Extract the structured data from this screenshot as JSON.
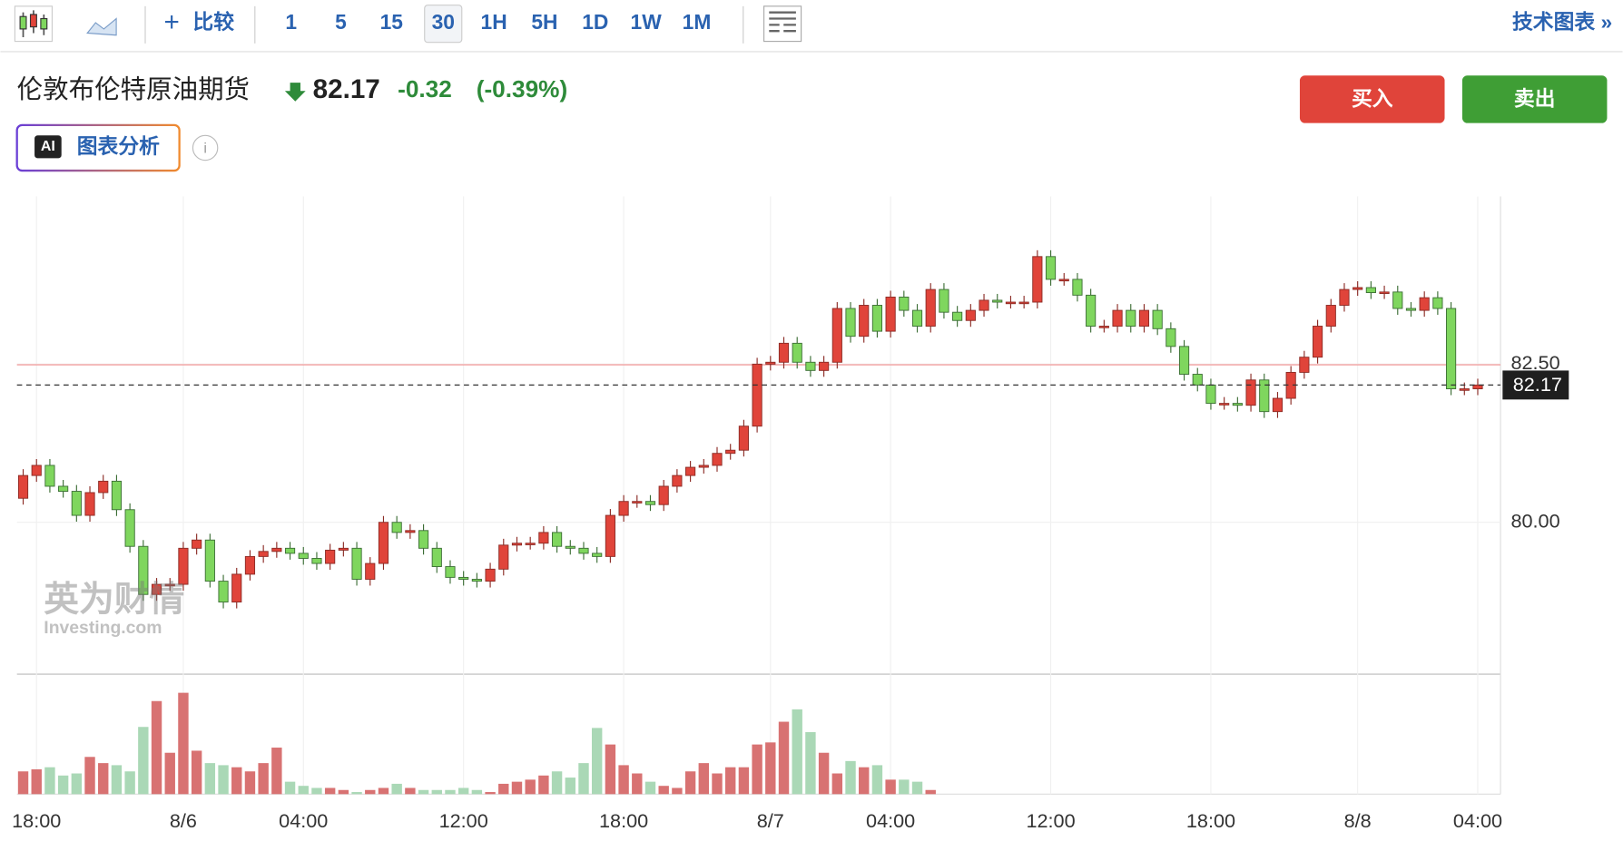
{
  "toolbar": {
    "compare": "比较",
    "intervals": [
      "1",
      "5",
      "15",
      "30",
      "1H",
      "5H",
      "1D",
      "1W",
      "1M"
    ],
    "tech_chart": "技术图表 »"
  },
  "header": {
    "instrument": "伦敦布伦特原油期货",
    "price": "82.17",
    "change": "-0.32",
    "change_pct": "(-0.39%)",
    "buy": "买入",
    "sell": "卖出",
    "ai_badge": "AI",
    "ai_button": "图表分析"
  },
  "watermark": {
    "cn": "英为财情",
    "en": "Investing.com"
  },
  "chart_data": {
    "type": "candlestick",
    "categories": [
      null,
      "18:00",
      null,
      null,
      null,
      null,
      null,
      null,
      null,
      null,
      null,
      null,
      "8/6",
      null,
      null,
      null,
      null,
      null,
      null,
      null,
      null,
      "04:00",
      null,
      null,
      null,
      null,
      null,
      null,
      null,
      null,
      null,
      null,
      null,
      "12:00",
      null,
      null,
      null,
      null,
      null,
      null,
      null,
      null,
      null,
      null,
      null,
      "18:00",
      null,
      null,
      null,
      null,
      null,
      null,
      null,
      null,
      null,
      null,
      "8/7",
      null,
      null,
      null,
      null,
      null,
      null,
      null,
      null,
      "04:00",
      null,
      null,
      null,
      null,
      null,
      null,
      null,
      null,
      null,
      null,
      null,
      "12:00",
      null,
      null,
      null,
      null,
      null,
      null,
      null,
      null,
      null,
      null,
      null,
      "18:00",
      null,
      null,
      null,
      null,
      null,
      null,
      null,
      null,
      null,
      null,
      "8/8",
      null,
      null,
      null,
      null,
      null,
      null,
      null,
      null,
      "04:00"
    ],
    "open": [
      80.38,
      80.74,
      80.9,
      80.57,
      80.49,
      80.11,
      80.47,
      80.65,
      80.2,
      79.62,
      78.86,
      79.02,
      79.02,
      79.59,
      79.72,
      79.07,
      78.74,
      79.18,
      79.46,
      79.54,
      79.59,
      79.51,
      79.43,
      79.35,
      79.56,
      79.59,
      79.1,
      79.35,
      80.0,
      79.84,
      79.87,
      79.59,
      79.3,
      79.13,
      79.1,
      79.07,
      79.26,
      79.64,
      79.67,
      79.67,
      79.84,
      79.62,
      79.59,
      79.51,
      79.46,
      80.11,
      80.33,
      80.33,
      80.28,
      80.57,
      80.74,
      80.87,
      80.9,
      81.09,
      81.14,
      81.52,
      82.5,
      82.53,
      82.83,
      82.53,
      82.4,
      82.53,
      83.38,
      82.94,
      83.43,
      83.02,
      83.56,
      83.35,
      83.1,
      83.68,
      83.32,
      83.19,
      83.35,
      83.51,
      83.48,
      83.48,
      83.48,
      84.2,
      83.84,
      83.84,
      83.59,
      83.1,
      83.1,
      83.35,
      83.1,
      83.35,
      83.06,
      82.78,
      82.34,
      82.17,
      81.88,
      81.88,
      81.85,
      82.25,
      81.75,
      81.96,
      82.37,
      82.61,
      83.1,
      83.43,
      83.68,
      83.71,
      83.63,
      83.64,
      83.38,
      83.35,
      83.55,
      83.38,
      82.11,
      82.11
    ],
    "high": [
      80.84,
      81.0,
      81.0,
      80.67,
      80.59,
      80.57,
      80.75,
      80.75,
      80.3,
      79.72,
      79.12,
      79.12,
      79.69,
      79.82,
      79.82,
      79.17,
      79.28,
      79.56,
      79.64,
      79.69,
      79.69,
      79.61,
      79.53,
      79.66,
      79.69,
      79.69,
      79.45,
      80.1,
      80.1,
      79.97,
      79.97,
      79.69,
      79.4,
      79.23,
      79.2,
      79.36,
      79.74,
      79.77,
      79.77,
      79.94,
      79.94,
      79.72,
      79.69,
      79.61,
      80.21,
      80.43,
      80.43,
      80.43,
      80.67,
      80.84,
      80.97,
      81.0,
      81.19,
      81.24,
      81.62,
      82.6,
      82.63,
      82.93,
      82.93,
      82.63,
      82.63,
      83.48,
      83.48,
      83.53,
      83.53,
      83.66,
      83.66,
      83.45,
      83.78,
      83.78,
      83.42,
      83.45,
      83.61,
      83.61,
      83.58,
      83.58,
      84.3,
      84.3,
      83.94,
      83.94,
      83.69,
      83.2,
      83.45,
      83.45,
      83.45,
      83.45,
      83.16,
      82.88,
      82.44,
      82.27,
      81.98,
      81.98,
      82.35,
      82.35,
      82.06,
      82.47,
      82.71,
      83.2,
      83.53,
      83.78,
      83.81,
      83.81,
      83.74,
      83.74,
      83.48,
      83.65,
      83.65,
      83.48,
      82.21,
      82.27
    ],
    "low": [
      80.28,
      80.64,
      80.47,
      80.39,
      80.01,
      80.01,
      80.37,
      80.1,
      79.52,
      78.76,
      78.76,
      78.92,
      78.92,
      79.49,
      78.97,
      78.64,
      78.64,
      79.08,
      79.36,
      79.44,
      79.41,
      79.33,
      79.25,
      79.25,
      79.46,
      79.0,
      79.0,
      79.25,
      79.74,
      79.74,
      79.49,
      79.2,
      79.03,
      79.0,
      78.97,
      78.97,
      79.16,
      79.54,
      79.57,
      79.57,
      79.52,
      79.49,
      79.41,
      79.36,
      79.36,
      80.01,
      80.23,
      80.18,
      80.18,
      80.47,
      80.64,
      80.77,
      80.8,
      80.99,
      81.04,
      81.42,
      82.4,
      82.43,
      82.43,
      82.3,
      82.3,
      82.43,
      82.84,
      82.84,
      82.92,
      82.92,
      83.25,
      83.0,
      83.0,
      83.22,
      83.09,
      83.09,
      83.25,
      83.38,
      83.38,
      83.38,
      83.38,
      83.74,
      83.74,
      83.49,
      83.0,
      83.0,
      83.0,
      83.0,
      83.0,
      82.96,
      82.68,
      82.24,
      82.07,
      81.78,
      81.78,
      81.75,
      81.75,
      81.65,
      81.65,
      81.86,
      82.27,
      82.51,
      83.0,
      83.33,
      83.58,
      83.53,
      83.53,
      83.28,
      83.25,
      83.25,
      83.28,
      82.01,
      82.01,
      82.01
    ],
    "close": [
      80.74,
      80.9,
      80.57,
      80.49,
      80.11,
      80.47,
      80.65,
      80.2,
      79.62,
      78.86,
      79.02,
      79.02,
      79.59,
      79.72,
      79.07,
      78.74,
      79.18,
      79.46,
      79.54,
      79.59,
      79.51,
      79.43,
      79.35,
      79.56,
      79.59,
      79.1,
      79.35,
      80.0,
      79.84,
      79.87,
      79.59,
      79.3,
      79.13,
      79.1,
      79.07,
      79.26,
      79.64,
      79.67,
      79.67,
      79.84,
      79.62,
      79.59,
      79.51,
      79.46,
      80.11,
      80.33,
      80.33,
      80.28,
      80.57,
      80.74,
      80.87,
      80.9,
      81.09,
      81.14,
      81.52,
      82.5,
      82.53,
      82.83,
      82.53,
      82.4,
      82.53,
      83.38,
      82.94,
      83.43,
      83.02,
      83.56,
      83.35,
      83.1,
      83.68,
      83.32,
      83.19,
      83.35,
      83.51,
      83.48,
      83.48,
      83.48,
      84.2,
      83.84,
      83.84,
      83.59,
      83.1,
      83.1,
      83.35,
      83.1,
      83.35,
      83.06,
      82.78,
      82.34,
      82.17,
      81.88,
      81.88,
      81.85,
      82.25,
      81.75,
      81.96,
      82.37,
      82.61,
      83.1,
      83.43,
      83.68,
      83.71,
      83.63,
      83.64,
      83.38,
      83.35,
      83.55,
      83.38,
      82.11,
      82.11,
      82.17
    ],
    "volume": [
      22,
      24,
      26,
      18,
      20,
      36,
      30,
      28,
      22,
      65,
      90,
      40,
      98,
      42,
      30,
      28,
      26,
      22,
      30,
      45,
      12,
      8,
      6,
      6,
      4,
      2,
      4,
      6,
      10,
      6,
      4,
      4,
      4,
      6,
      4,
      2,
      10,
      12,
      14,
      18,
      22,
      16,
      30,
      64,
      48,
      28,
      20,
      12,
      8,
      6,
      22,
      30,
      20,
      26,
      26,
      48,
      50,
      70,
      82,
      60,
      40,
      20,
      32,
      26,
      28,
      14,
      14,
      12,
      4,
      null,
      null,
      null,
      null,
      null,
      null,
      null,
      null,
      null,
      null,
      null,
      null,
      null,
      null,
      null,
      null,
      null,
      null,
      null,
      null,
      null,
      null,
      null,
      null,
      null,
      null,
      null,
      null,
      null,
      null,
      null,
      null,
      null,
      null,
      null,
      null,
      null,
      null,
      null,
      null,
      null
    ],
    "volume_lim": [
      0,
      116
    ],
    "prev_close": 82.49,
    "ylim": [
      77.6,
      85.15
    ],
    "yticks": [
      {
        "value": 80,
        "label": "80.00"
      },
      {
        "value": 82.5,
        "label": "82.50"
      }
    ],
    "grid": true,
    "up_color": "#e0443a",
    "down_color": "#7fd65e",
    "up_volume_color": "#d87272",
    "down_volume_color": "#aad8b6",
    "ref_color": "#f2a0a0"
  }
}
